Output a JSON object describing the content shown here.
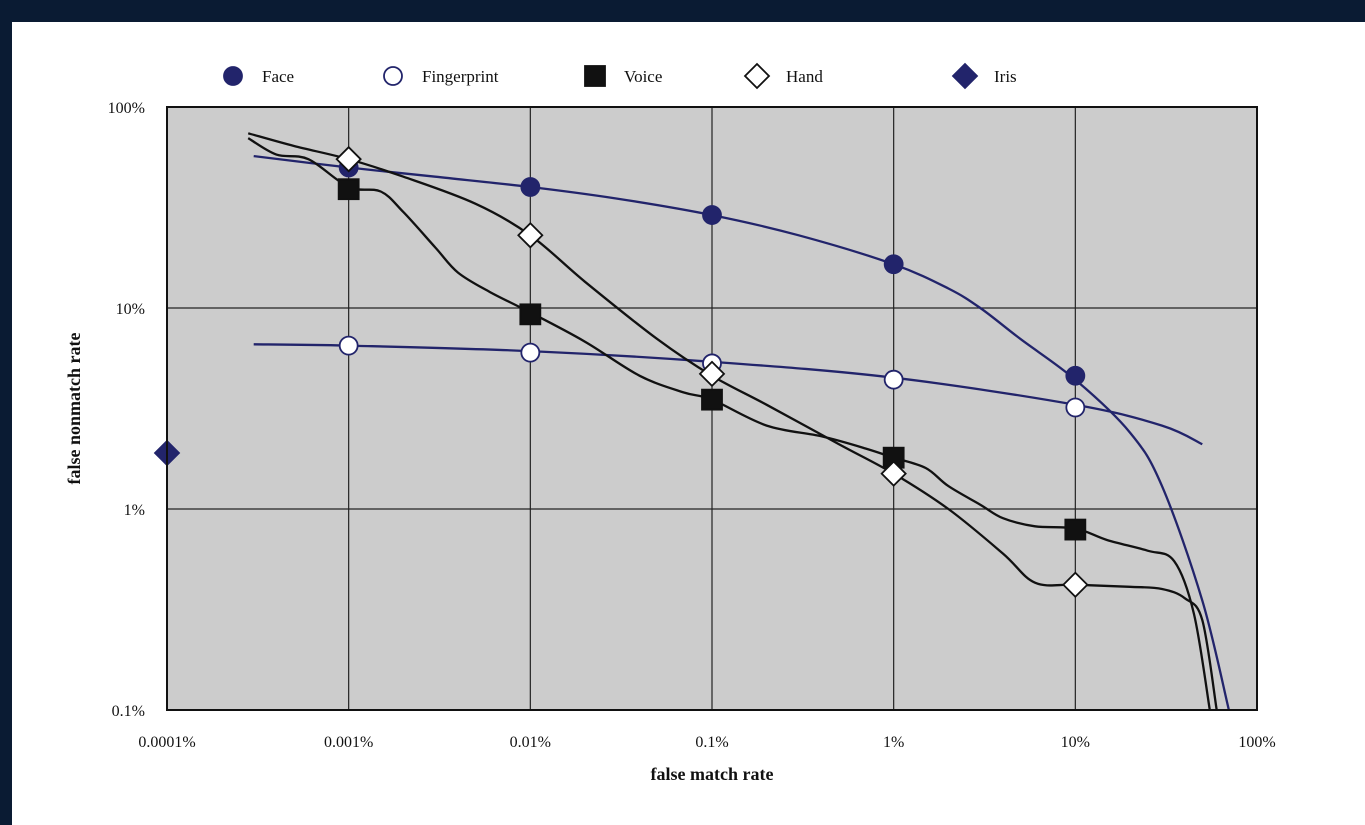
{
  "chart_data": {
    "type": "line",
    "xlabel": "false match rate",
    "ylabel": "false nonmatch rate",
    "x_scale": "log",
    "y_scale": "log",
    "xlim": [
      0.0001,
      100
    ],
    "ylim": [
      0.1,
      100
    ],
    "x_ticks": [
      0.0001,
      0.001,
      0.01,
      0.1,
      1,
      10,
      100
    ],
    "x_tick_labels": [
      "0.0001%",
      "0.001%",
      "0.01%",
      "0.1%",
      "1%",
      "10%",
      "100%"
    ],
    "y_ticks": [
      0.1,
      1,
      10,
      100
    ],
    "y_tick_labels": [
      "0.1%",
      "1%",
      "10%",
      "100%"
    ],
    "grid": true,
    "legend_position": "top",
    "colors": {
      "navy": "#22246b",
      "black": "#111111",
      "plot_bg": "#cccccc"
    },
    "series": [
      {
        "name": "Face",
        "marker": "filled-circle",
        "color": "#22246b",
        "curve_x": [
          0.0003,
          0.001,
          0.003,
          0.01,
          0.03,
          0.1,
          0.3,
          1,
          2,
          3,
          5,
          10,
          20,
          30,
          50,
          70
        ],
        "curve_y": [
          57,
          50,
          45,
          40,
          35,
          29,
          23,
          16.5,
          12.5,
          10,
          7,
          4.4,
          2.4,
          1.3,
          0.35,
          0.1
        ],
        "marker_x": [
          0.001,
          0.01,
          0.1,
          1,
          10
        ],
        "marker_y": [
          50,
          40,
          29,
          16.5,
          4.6
        ]
      },
      {
        "name": "Fingerprint",
        "marker": "open-circle",
        "color": "#22246b",
        "curve_x": [
          0.0003,
          0.001,
          0.01,
          0.1,
          1,
          10,
          30,
          50
        ],
        "curve_y": [
          6.6,
          6.5,
          6.1,
          5.4,
          4.5,
          3.3,
          2.6,
          2.1
        ],
        "marker_x": [
          0.001,
          0.01,
          0.1,
          1,
          10
        ],
        "marker_y": [
          6.5,
          6.0,
          5.3,
          4.4,
          3.2
        ]
      },
      {
        "name": "Voice",
        "marker": "filled-square",
        "color": "#111111",
        "curve_x": [
          0.00028,
          0.0004,
          0.0006,
          0.001,
          0.0015,
          0.002,
          0.003,
          0.004,
          0.006,
          0.01,
          0.02,
          0.04,
          0.07,
          0.1,
          0.2,
          0.4,
          0.7,
          1,
          1.5,
          2,
          3,
          4,
          6,
          10,
          15,
          25,
          35,
          45,
          55
        ],
        "curve_y": [
          70,
          58,
          55,
          40,
          38,
          30,
          20,
          15,
          12,
          9.5,
          6.8,
          4.6,
          3.8,
          3.5,
          2.6,
          2.3,
          2.0,
          1.8,
          1.6,
          1.3,
          1.05,
          0.9,
          0.82,
          0.8,
          0.7,
          0.62,
          0.55,
          0.3,
          0.1
        ],
        "marker_x": [
          0.001,
          0.01,
          0.1,
          1,
          10
        ],
        "marker_y": [
          39,
          9.3,
          3.5,
          1.8,
          0.79
        ]
      },
      {
        "name": "Hand",
        "marker": "open-diamond",
        "color": "#111111",
        "curve_x": [
          0.00028,
          0.0005,
          0.001,
          0.002,
          0.005,
          0.01,
          0.02,
          0.05,
          0.1,
          0.2,
          0.5,
          1,
          2,
          4,
          6,
          10,
          20,
          30,
          40,
          50,
          60
        ],
        "curve_y": [
          74,
          64,
          55,
          45,
          33,
          23,
          13.5,
          7,
          4.6,
          3.3,
          2.1,
          1.5,
          1.0,
          0.6,
          0.43,
          0.42,
          0.41,
          0.4,
          0.36,
          0.28,
          0.1
        ],
        "marker_x": [
          0.001,
          0.01,
          0.1,
          1,
          10
        ],
        "marker_y": [
          55,
          23,
          4.7,
          1.5,
          0.42
        ]
      },
      {
        "name": "Iris",
        "marker": "filled-diamond",
        "color": "#22246b",
        "curve_x": [],
        "curve_y": [],
        "marker_x": [
          0.0001
        ],
        "marker_y": [
          1.9
        ]
      }
    ]
  }
}
